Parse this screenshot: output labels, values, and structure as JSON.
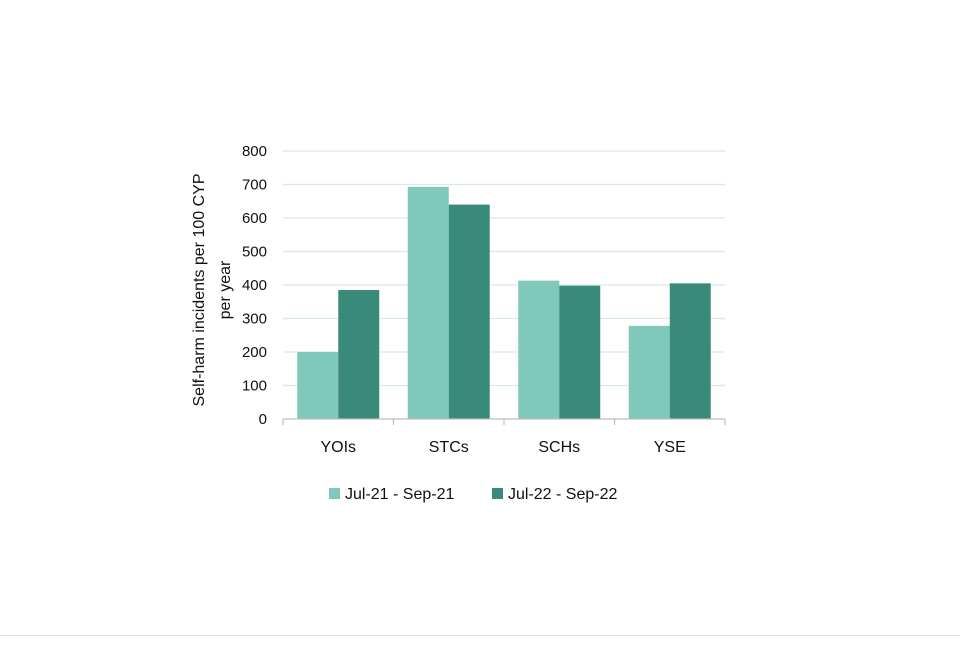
{
  "chart_data": {
    "type": "bar",
    "title": "",
    "xlabel": "",
    "ylabel": "Self-harm incidents per 100 CYP per year",
    "ylabel_lines": [
      "Self-harm incidents per 100 CYP",
      "per year"
    ],
    "categories": [
      "YOIs",
      "STCs",
      "SCHs",
      "YSE"
    ],
    "series": [
      {
        "name": "Jul-21 - Sep-21",
        "color": "#7fc8bb",
        "values": [
          200,
          693,
          413,
          278
        ]
      },
      {
        "name": "Jul-22 - Sep-22",
        "color": "#3a8a7c",
        "values": [
          385,
          640,
          398,
          405
        ]
      }
    ],
    "ylim": [
      0,
      800
    ],
    "yticks": [
      0,
      100,
      200,
      300,
      400,
      500,
      600,
      700,
      800
    ],
    "grid": true,
    "legend": "bottom"
  }
}
